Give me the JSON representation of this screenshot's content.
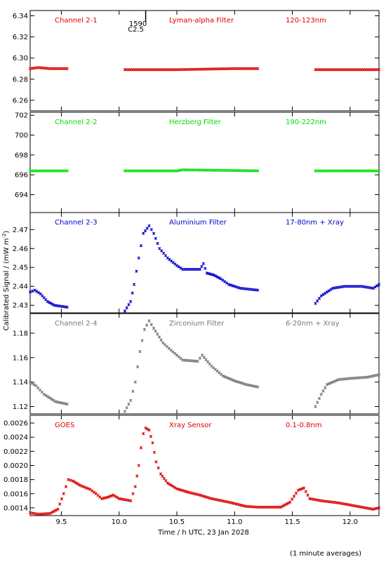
{
  "ylabel": "Calibrated Signal / (mW m",
  "ylabel_sup": "-2",
  "ylabel_close": ")",
  "xlabel": "Time / h UTC, 23 Jan 2028",
  "footnote": "(1 minute averages)",
  "event_marker": {
    "x": 10.23,
    "label1": "1590",
    "label2": "C2.5"
  },
  "xaxis": {
    "range": [
      9.23,
      12.25
    ],
    "ticks": [
      9.5,
      10.0,
      10.5,
      11.0,
      11.5,
      12.0
    ],
    "tick_labels": [
      "9.5",
      "10.0",
      "10.5",
      "11.0",
      "11.5",
      "12.0"
    ]
  },
  "colors": {
    "red": "#dd0000",
    "green": "#00dd00",
    "blue": "#0000cc",
    "gray": "#777777"
  },
  "panels": [
    {
      "name": "Channel 2-1",
      "filter": "Lyman-alpha Filter",
      "band": "120-123nm",
      "color": "#dd0000",
      "ylim": [
        6.25,
        6.345
      ],
      "yticks": [
        6.26,
        6.28,
        6.3,
        6.32,
        6.34
      ],
      "ytick_labels": [
        "6.26",
        "6.28",
        "6.30",
        "6.32",
        "6.34"
      ]
    },
    {
      "name": "Channel 2-2",
      "filter": "Herzberg Filter",
      "band": "190-222nm",
      "color": "#00dd00",
      "ylim": [
        692.2,
        702.3
      ],
      "yticks": [
        694,
        696,
        698,
        700,
        702
      ],
      "ytick_labels": [
        "694",
        "696",
        "698",
        "700",
        "702"
      ]
    },
    {
      "name": "Channel 2-3",
      "filter": "Aluminium Filter",
      "band": "17-80nm + Xray",
      "color": "#0000cc",
      "ylim": [
        2.426,
        2.479
      ],
      "yticks": [
        2.43,
        2.44,
        2.45,
        2.46,
        2.47
      ],
      "ytick_labels": [
        "2.43",
        "2.44",
        "2.45",
        "2.46",
        "2.47"
      ]
    },
    {
      "name": "Channel 2-4",
      "filter": "Zirconium Filter",
      "band": "6-20nm + Xray",
      "color": "#777777",
      "ylim": [
        1.114,
        1.196
      ],
      "yticks": [
        1.12,
        1.14,
        1.16,
        1.18
      ],
      "ytick_labels": [
        "1.12",
        "1.14",
        "1.16",
        "1.18"
      ]
    },
    {
      "name": "GOES",
      "filter": "Xray Sensor",
      "band": "0.1-0.8nm",
      "color": "#dd0000",
      "ylim": [
        0.00129,
        0.00271
      ],
      "yticks": [
        0.0014,
        0.0016,
        0.0018,
        0.002,
        0.0022,
        0.0024,
        0.0026
      ],
      "ytick_labels": [
        "0.0014",
        "0.0016",
        "0.0018",
        "0.0020",
        "0.0022",
        "0.0024",
        "0.0026"
      ]
    }
  ],
  "chart_data": [
    {
      "type": "scatter",
      "title": "Channel 2-1",
      "segments": [
        {
          "x": [
            9.23,
            9.3,
            9.4,
            9.55
          ],
          "y": [
            6.29,
            6.291,
            6.29,
            6.29
          ]
        },
        {
          "x": [
            10.05,
            10.5,
            11.0,
            11.2
          ],
          "y": [
            6.289,
            6.289,
            6.29,
            6.29
          ]
        },
        {
          "x": [
            11.7,
            12.0,
            12.25
          ],
          "y": [
            6.289,
            6.289,
            6.289
          ]
        }
      ]
    },
    {
      "type": "scatter",
      "title": "Channel 2-2",
      "segments": [
        {
          "x": [
            9.23,
            9.55
          ],
          "y": [
            696.4,
            696.4
          ]
        },
        {
          "x": [
            10.05,
            10.5,
            10.55,
            11.2
          ],
          "y": [
            696.4,
            696.4,
            696.5,
            696.4
          ]
        },
        {
          "x": [
            11.7,
            12.25
          ],
          "y": [
            696.4,
            696.4
          ]
        }
      ]
    },
    {
      "type": "scatter",
      "title": "Channel 2-3",
      "segments": [
        {
          "x": [
            9.23,
            9.27,
            9.32,
            9.38,
            9.44,
            9.55
          ],
          "y": [
            2.437,
            2.438,
            2.436,
            2.432,
            2.43,
            2.429
          ]
        },
        {
          "x": [
            10.05,
            10.1,
            10.13,
            10.17,
            10.21,
            10.26,
            10.3,
            10.35,
            10.42,
            10.5,
            10.55,
            10.7,
            10.73,
            10.76,
            10.82,
            10.88,
            10.95,
            11.05,
            11.2
          ],
          "y": [
            2.427,
            2.432,
            2.441,
            2.455,
            2.468,
            2.472,
            2.468,
            2.46,
            2.455,
            2.451,
            2.449,
            2.449,
            2.452,
            2.447,
            2.446,
            2.444,
            2.441,
            2.439,
            2.438
          ]
        },
        {
          "x": [
            11.7,
            11.75,
            11.85,
            11.95,
            12.1,
            12.2,
            12.25
          ],
          "y": [
            2.431,
            2.435,
            2.439,
            2.44,
            2.44,
            2.439,
            2.441
          ]
        }
      ]
    },
    {
      "type": "scatter",
      "title": "Channel 2-4",
      "segments": [
        {
          "x": [
            9.23,
            9.28,
            9.35,
            9.45,
            9.55
          ],
          "y": [
            1.14,
            1.137,
            1.13,
            1.124,
            1.122
          ]
        },
        {
          "x": [
            10.05,
            10.1,
            10.14,
            10.18,
            10.22,
            10.26,
            10.3,
            10.38,
            10.45,
            10.55,
            10.68,
            10.72,
            10.8,
            10.9,
            11.0,
            11.1,
            11.2
          ],
          "y": [
            1.116,
            1.125,
            1.14,
            1.165,
            1.183,
            1.19,
            1.184,
            1.172,
            1.166,
            1.158,
            1.157,
            1.162,
            1.153,
            1.145,
            1.141,
            1.138,
            1.136
          ]
        },
        {
          "x": [
            11.7,
            11.75,
            11.8,
            11.9,
            12.0,
            12.15,
            12.25
          ],
          "y": [
            1.12,
            1.13,
            1.138,
            1.142,
            1.143,
            1.144,
            1.146
          ]
        }
      ]
    },
    {
      "type": "scatter",
      "title": "GOES",
      "segments": [
        {
          "x": [
            9.23,
            9.3,
            9.4,
            9.47,
            9.52,
            9.56,
            9.6,
            9.66,
            9.75,
            9.8,
            9.85,
            9.9,
            9.95,
            10.0,
            10.1,
            10.14,
            10.17,
            10.19,
            10.21,
            10.23,
            10.26,
            10.29,
            10.32,
            10.36,
            10.42,
            10.5,
            10.6,
            10.7,
            10.8,
            10.95,
            11.1,
            11.2,
            11.3,
            11.4,
            11.48,
            11.55,
            11.6,
            11.65,
            11.75,
            11.9,
            12.0,
            12.1,
            12.2,
            12.25
          ],
          "y": [
            0.00133,
            0.00131,
            0.00132,
            0.00138,
            0.0016,
            0.0018,
            0.00178,
            0.00172,
            0.00166,
            0.0016,
            0.00153,
            0.00155,
            0.00158,
            0.00153,
            0.0015,
            0.0017,
            0.002,
            0.00225,
            0.00245,
            0.00253,
            0.0025,
            0.00232,
            0.00205,
            0.00188,
            0.00175,
            0.00167,
            0.00162,
            0.00158,
            0.00153,
            0.00148,
            0.00142,
            0.00141,
            0.00141,
            0.00141,
            0.00148,
            0.00165,
            0.00168,
            0.00153,
            0.0015,
            0.00147,
            0.00144,
            0.00141,
            0.00138,
            0.0014
          ]
        }
      ]
    }
  ]
}
